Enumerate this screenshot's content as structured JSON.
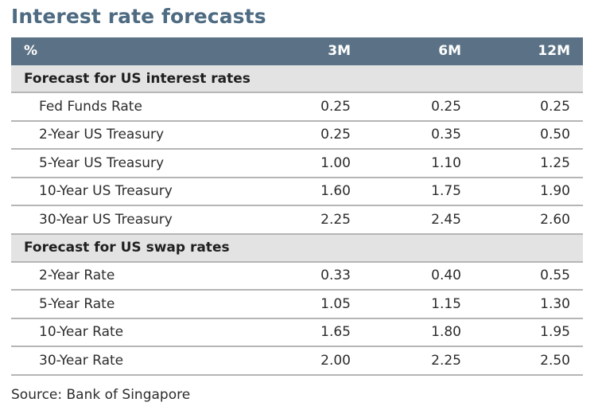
{
  "title": "Interest rate forecasts",
  "header": {
    "unit": "%",
    "cols": [
      "3M",
      "6M",
      "12M"
    ]
  },
  "sections": [
    {
      "label": "Forecast for US interest rates",
      "rows": [
        {
          "name": "Fed Funds Rate",
          "values": [
            "0.25",
            "0.25",
            "0.25"
          ]
        },
        {
          "name": "2-Year US Treasury",
          "values": [
            "0.25",
            "0.35",
            "0.50"
          ]
        },
        {
          "name": "5-Year US Treasury",
          "values": [
            "1.00",
            "1.10",
            "1.25"
          ]
        },
        {
          "name": "10-Year US Treasury",
          "values": [
            "1.60",
            "1.75",
            "1.90"
          ]
        },
        {
          "name": "30-Year US Treasury",
          "values": [
            "2.25",
            "2.45",
            "2.60"
          ]
        }
      ]
    },
    {
      "label": "Forecast for US swap rates",
      "rows": [
        {
          "name": "2-Year Rate",
          "values": [
            "0.33",
            "0.40",
            "0.55"
          ]
        },
        {
          "name": "5-Year Rate",
          "values": [
            "1.05",
            "1.15",
            "1.30"
          ]
        },
        {
          "name": "10-Year Rate",
          "values": [
            "1.65",
            "1.80",
            "1.95"
          ]
        },
        {
          "name": "30-Year Rate",
          "values": [
            "2.00",
            "2.25",
            "2.50"
          ]
        }
      ]
    }
  ],
  "source": "Source: Bank of Singapore",
  "colors": {
    "title": "#4e6b82",
    "header_bg": "#5b7286",
    "section_bg": "#e3e3e3",
    "rule": "#b5b5b5"
  }
}
